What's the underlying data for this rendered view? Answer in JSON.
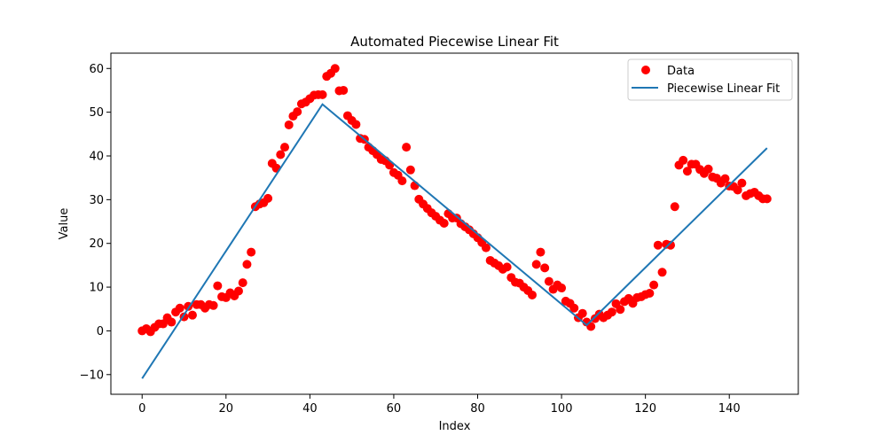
{
  "chart_data": {
    "type": "scatter",
    "title": "Automated Piecewise Linear Fit",
    "xlabel": "Index",
    "ylabel": "Value",
    "xlim": [
      -7.45,
      156.45
    ],
    "ylim": [
      -14.5,
      63.5
    ],
    "xticks": [
      0,
      20,
      40,
      60,
      80,
      100,
      120,
      140
    ],
    "yticks": [
      -10,
      0,
      10,
      20,
      30,
      40,
      50,
      60
    ],
    "grid": false,
    "legend_position": "top-right",
    "series": [
      {
        "name": "Data",
        "kind": "scatter",
        "color": "#ff0000",
        "x": [
          0,
          1,
          2,
          3,
          4,
          5,
          6,
          7,
          8,
          9,
          10,
          11,
          12,
          13,
          14,
          15,
          16,
          17,
          18,
          19,
          20,
          21,
          22,
          23,
          24,
          25,
          26,
          27,
          28,
          29,
          30,
          31,
          32,
          33,
          34,
          35,
          36,
          37,
          38,
          39,
          40,
          41,
          42,
          43,
          44,
          45,
          46,
          47,
          48,
          49,
          50,
          51,
          52,
          53,
          54,
          55,
          56,
          57,
          58,
          59,
          60,
          61,
          62,
          63,
          64,
          65,
          66,
          67,
          68,
          69,
          70,
          71,
          72,
          73,
          74,
          75,
          76,
          77,
          78,
          79,
          80,
          81,
          82,
          83,
          84,
          85,
          86,
          87,
          88,
          89,
          90,
          91,
          92,
          93,
          94,
          95,
          96,
          97,
          98,
          99,
          100,
          101,
          102,
          103,
          104,
          105,
          106,
          107,
          108,
          109,
          110,
          111,
          112,
          113,
          114,
          115,
          116,
          117,
          118,
          119,
          120,
          121,
          122,
          123,
          124,
          125,
          126,
          127,
          128,
          129,
          130,
          131,
          132,
          133,
          134,
          135,
          136,
          137,
          138,
          139,
          140,
          141,
          142,
          143,
          144,
          145,
          146,
          147,
          148,
          149
        ],
        "y": [
          0,
          0.5,
          -0.2,
          0.8,
          1.6,
          1.6,
          3.0,
          2.0,
          4.3,
          5.2,
          3.2,
          5.6,
          3.6,
          6.0,
          6.0,
          5.2,
          6.0,
          5.8,
          10.3,
          7.8,
          7.6,
          8.7,
          8.0,
          9.1,
          11.0,
          15.2,
          18.0,
          28.4,
          29.0,
          29.3,
          30.3,
          38.3,
          37.2,
          40.3,
          42.0,
          47.1,
          49.1,
          50.1,
          51.9,
          52.3,
          53.1,
          53.9,
          54.0,
          54.0,
          58.2,
          58.9,
          60.0,
          54.9,
          55.0,
          49.2,
          48.1,
          47.2,
          44.0,
          43.8,
          42.0,
          41.2,
          40.3,
          39.2,
          38.9,
          37.9,
          36.2,
          35.6,
          34.3,
          42.0,
          36.8,
          33.2,
          30.1,
          29.0,
          28.0,
          27.0,
          26.2,
          25.3,
          24.6,
          26.8,
          25.8,
          25.8,
          24.5,
          23.8,
          23.1,
          22.2,
          21.3,
          20.2,
          19.0,
          16.1,
          15.5,
          14.9,
          14.1,
          14.6,
          12.2,
          11.1,
          10.9,
          10.0,
          9.2,
          8.2,
          15.2,
          18.0,
          14.4,
          11.3,
          9.5,
          10.5,
          9.8,
          6.8,
          6.3,
          5.2,
          3.0,
          4.0,
          2.0,
          1.0,
          2.8,
          3.8,
          3.0,
          3.6,
          4.3,
          6.2,
          4.9,
          6.7,
          7.4,
          6.3,
          7.6,
          7.8,
          8.3,
          8.6,
          10.5,
          19.6,
          13.4,
          19.8,
          19.6,
          28.4,
          37.9,
          39.0,
          36.5,
          38.1,
          38.1,
          36.9,
          36.0,
          37.0,
          35.2,
          34.9,
          33.8,
          34.8,
          33.1,
          33.0,
          32.2,
          33.8,
          30.9,
          31.4,
          31.7,
          30.9,
          30.2,
          30.2
        ]
      },
      {
        "name": "Piecewise Linear Fit",
        "kind": "line",
        "color": "#1f77b4",
        "x": [
          0,
          43,
          106,
          149
        ],
        "y": [
          -10.9,
          51.8,
          1.3,
          41.8
        ]
      }
    ]
  }
}
